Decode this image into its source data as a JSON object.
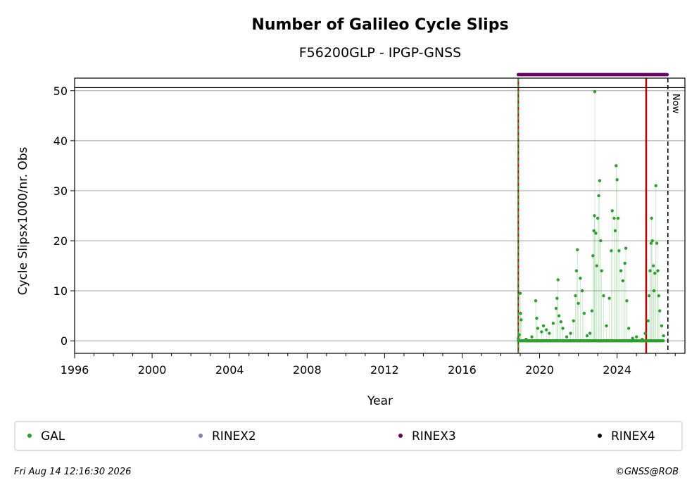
{
  "chart_data": {
    "type": "scatter",
    "title": "Number of Galileo Cycle Slips",
    "subtitle": "F56200GLP - IPGP-GNSS",
    "xlabel": "Year",
    "ylabel": "Cycle Slipsx1000/nr. Obs",
    "xlim": [
      1996,
      2027.5
    ],
    "ylim": [
      -2.5,
      52.5
    ],
    "x_ticks": [
      1996,
      2000,
      2004,
      2008,
      2012,
      2016,
      2020,
      2024
    ],
    "y_ticks": [
      0,
      10,
      20,
      30,
      40,
      50
    ],
    "grid": "horizontal",
    "legend_position": "bottom",
    "series": [
      {
        "name": "GAL",
        "color": "#2ca02c",
        "points": [
          [
            2018.9,
            0.5
          ],
          [
            2018.95,
            1.2
          ],
          [
            2019.0,
            9.5
          ],
          [
            2019.02,
            5.5
          ],
          [
            2019.05,
            4.2
          ],
          [
            2019.3,
            0.3
          ],
          [
            2019.6,
            0.8
          ],
          [
            2019.8,
            8.0
          ],
          [
            2019.85,
            4.5
          ],
          [
            2019.9,
            2.5
          ],
          [
            2020.1,
            1.8
          ],
          [
            2020.2,
            3.0
          ],
          [
            2020.35,
            2.2
          ],
          [
            2020.5,
            1.5
          ],
          [
            2020.7,
            3.5
          ],
          [
            2020.85,
            6.5
          ],
          [
            2020.9,
            8.5
          ],
          [
            2020.95,
            12.2
          ],
          [
            2021.0,
            5.0
          ],
          [
            2021.1,
            3.8
          ],
          [
            2021.2,
            2.5
          ],
          [
            2021.4,
            0.8
          ],
          [
            2021.6,
            1.5
          ],
          [
            2021.75,
            4.0
          ],
          [
            2021.85,
            9.0
          ],
          [
            2021.9,
            14.0
          ],
          [
            2021.95,
            18.2
          ],
          [
            2022.0,
            7.5
          ],
          [
            2022.1,
            12.5
          ],
          [
            2022.2,
            10.0
          ],
          [
            2022.3,
            5.5
          ],
          [
            2022.45,
            1.0
          ],
          [
            2022.6,
            1.5
          ],
          [
            2022.7,
            6.0
          ],
          [
            2022.75,
            17.0
          ],
          [
            2022.8,
            22.0
          ],
          [
            2022.83,
            25.0
          ],
          [
            2022.85,
            49.8
          ],
          [
            2022.9,
            21.5
          ],
          [
            2022.95,
            15.0
          ],
          [
            2023.0,
            24.5
          ],
          [
            2023.05,
            29.0
          ],
          [
            2023.1,
            32.0
          ],
          [
            2023.15,
            20.0
          ],
          [
            2023.2,
            14.0
          ],
          [
            2023.3,
            9.0
          ],
          [
            2023.45,
            3.0
          ],
          [
            2023.6,
            8.5
          ],
          [
            2023.7,
            18.0
          ],
          [
            2023.75,
            26.0
          ],
          [
            2023.85,
            24.5
          ],
          [
            2023.9,
            22.0
          ],
          [
            2023.95,
            35.0
          ],
          [
            2024.0,
            32.2
          ],
          [
            2024.05,
            24.5
          ],
          [
            2024.1,
            18.0
          ],
          [
            2024.2,
            14.0
          ],
          [
            2024.3,
            12.0
          ],
          [
            2024.4,
            15.5
          ],
          [
            2024.45,
            18.5
          ],
          [
            2024.5,
            8.0
          ],
          [
            2024.6,
            2.5
          ],
          [
            2024.8,
            0.5
          ],
          [
            2025.0,
            0.8
          ],
          [
            2025.3,
            0.3
          ],
          [
            2025.45,
            1.5
          ],
          [
            2025.6,
            4.0
          ],
          [
            2025.65,
            9.0
          ],
          [
            2025.7,
            14.0
          ],
          [
            2025.75,
            19.5
          ],
          [
            2025.78,
            24.5
          ],
          [
            2025.82,
            20.0
          ],
          [
            2025.87,
            15.0
          ],
          [
            2025.9,
            10.0
          ],
          [
            2025.95,
            13.5
          ],
          [
            2026.0,
            31.0
          ],
          [
            2026.05,
            19.5
          ],
          [
            2026.1,
            14.0
          ],
          [
            2026.15,
            9.0
          ],
          [
            2026.2,
            6.0
          ],
          [
            2026.3,
            3.0
          ],
          [
            2026.4,
            1.0
          ]
        ]
      },
      {
        "name": "RINEX2",
        "color": "#8080c0",
        "points": []
      },
      {
        "name": "RINEX3",
        "color": "#6a0067",
        "x_range": [
          2018.9,
          2026.6
        ],
        "y": 53.2
      },
      {
        "name": "RINEX4",
        "color": "#1a0020",
        "points": []
      }
    ],
    "vertical_markers": [
      {
        "x": 2018.9,
        "color": "#2ca02c",
        "style": "dashed-over-red"
      },
      {
        "x": 2025.5,
        "color": "#c00000",
        "style": "solid"
      },
      {
        "x": 2026.62,
        "color": "#000000",
        "style": "dashed",
        "label": "Now"
      }
    ]
  },
  "footer": {
    "timestamp": "Fri Aug 14 12:16:30 2026",
    "copyright": "©GNSS@ROB"
  }
}
